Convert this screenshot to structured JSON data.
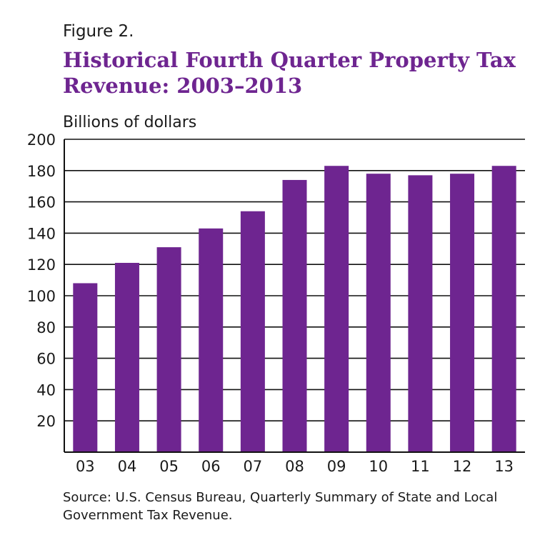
{
  "figure_label": "Figure 2.",
  "colors": {
    "bar": "#6e2590",
    "title": "#6e2590"
  },
  "chart_data": {
    "type": "bar",
    "title": "Historical Fourth Quarter Property Tax Revenue: 2003–2013",
    "xlabel": "",
    "ylabel": "Billions of dollars",
    "categories": [
      "03",
      "04",
      "05",
      "06",
      "07",
      "08",
      "09",
      "10",
      "11",
      "12",
      "13"
    ],
    "values": [
      108,
      121,
      131,
      143,
      154,
      174,
      183,
      178,
      177,
      178,
      183
    ],
    "ylim": [
      0,
      200
    ],
    "yticks": [
      200,
      180,
      160,
      140,
      120,
      100,
      80,
      60,
      40,
      20
    ],
    "grid": true
  },
  "source": "Source: U.S. Census Bureau, Quarterly Summary of State and Local Government Tax Revenue."
}
